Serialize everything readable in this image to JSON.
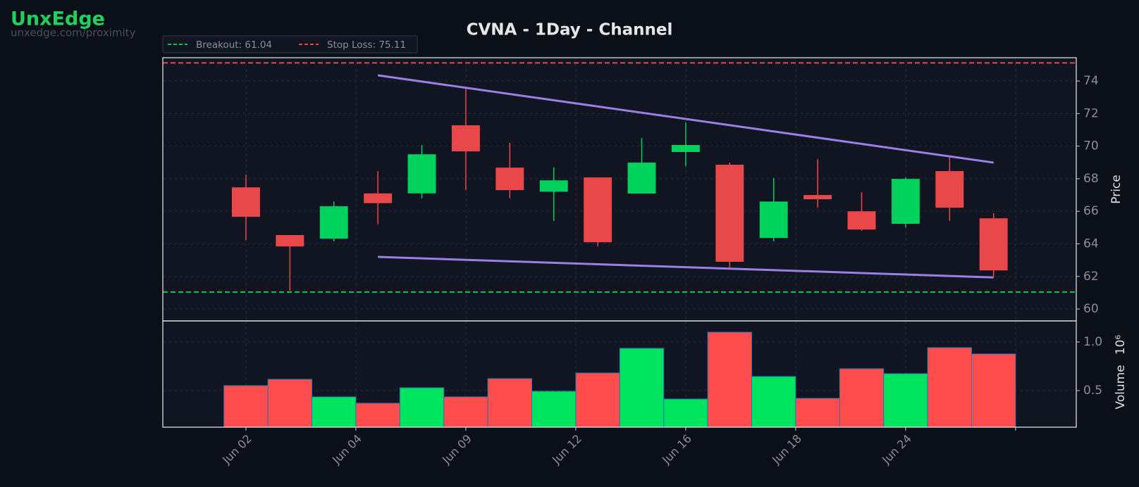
{
  "brand": {
    "name": "UnxEdge",
    "url": "unxedge.com/proximity"
  },
  "chart_data": {
    "type": "candlestick",
    "title": "CVNA - 1Day - Channel",
    "ylabel": "Price",
    "x": [
      0,
      1,
      2,
      3,
      4,
      5,
      6,
      7,
      8,
      9,
      10,
      11,
      12,
      13,
      14,
      15,
      16,
      17
    ],
    "open": [
      67.47,
      64.54,
      64.32,
      67.1,
      67.1,
      71.28,
      68.68,
      67.2,
      68.08,
      67.09,
      69.64,
      68.86,
      64.36,
      67.0,
      66.0,
      65.23,
      68.47,
      65.57
    ],
    "high": [
      68.25,
      64.54,
      66.6,
      68.47,
      70.07,
      73.57,
      70.2,
      68.7,
      68.08,
      70.5,
      71.45,
      68.99,
      68.04,
      69.2,
      67.17,
      68.08,
      69.37,
      65.88
    ],
    "low": [
      64.23,
      61.12,
      64.15,
      65.2,
      66.8,
      67.3,
      66.8,
      65.4,
      63.84,
      67.09,
      68.77,
      62.55,
      64.15,
      66.22,
      64.8,
      65.0,
      65.4,
      61.98
    ],
    "close": [
      65.66,
      63.84,
      66.31,
      66.5,
      69.5,
      69.68,
      67.3,
      67.9,
      64.1,
      68.99,
      70.07,
      62.9,
      66.6,
      66.74,
      64.88,
      67.99,
      66.22,
      62.37
    ],
    "up_color": "#00d15c",
    "down_color": "#e84849",
    "xlim": [
      -1.89,
      18.88
    ],
    "xticks": [
      {
        "value": 0,
        "label": "Jun 02"
      },
      {
        "value": 2.5,
        "label": "Jun 04"
      },
      {
        "value": 5,
        "label": "Jun 09"
      },
      {
        "value": 7.5,
        "label": "Jun 12"
      },
      {
        "value": 10,
        "label": "Jun 16"
      },
      {
        "value": 12.5,
        "label": "Jun 18"
      },
      {
        "value": 15,
        "label": "Jun 24"
      },
      {
        "value": 17.5,
        "label": null
      }
    ],
    "ylim": [
      59.27,
      75.43
    ],
    "yticks": [
      60,
      62,
      64,
      66,
      68,
      70,
      72,
      74
    ],
    "grid": true,
    "lines": [
      {
        "name": "Breakout: 61.04",
        "value": 61.04,
        "color": "#00c853"
      },
      {
        "name": "Stop Loss: 75.11",
        "value": 75.11,
        "color": "#e84849"
      }
    ],
    "trendlines": [
      {
        "x": [
          3,
          17
        ],
        "values": [
          74.35,
          68.99
        ],
        "color": "#9b7fe6"
      },
      {
        "x": [
          3,
          17
        ],
        "values": [
          63.2,
          61.94
        ],
        "color": "#9b7fe6"
      }
    ],
    "volume": {
      "ylabel": "Volume",
      "multiplier": "10⁶",
      "values": [
        0.551,
        0.616,
        0.435,
        0.37,
        0.529,
        0.435,
        0.623,
        0.493,
        0.681,
        0.935,
        0.413,
        1.101,
        0.645,
        0.42,
        0.725,
        0.674,
        0.942,
        0.877
      ],
      "up_color": "#00e35e",
      "down_color": "#ff4d4d",
      "ylim": [
        0.123,
        1.217
      ],
      "yticks": [
        0.5,
        {
          "value": 1,
          "label": "1.0"
        }
      ]
    }
  }
}
